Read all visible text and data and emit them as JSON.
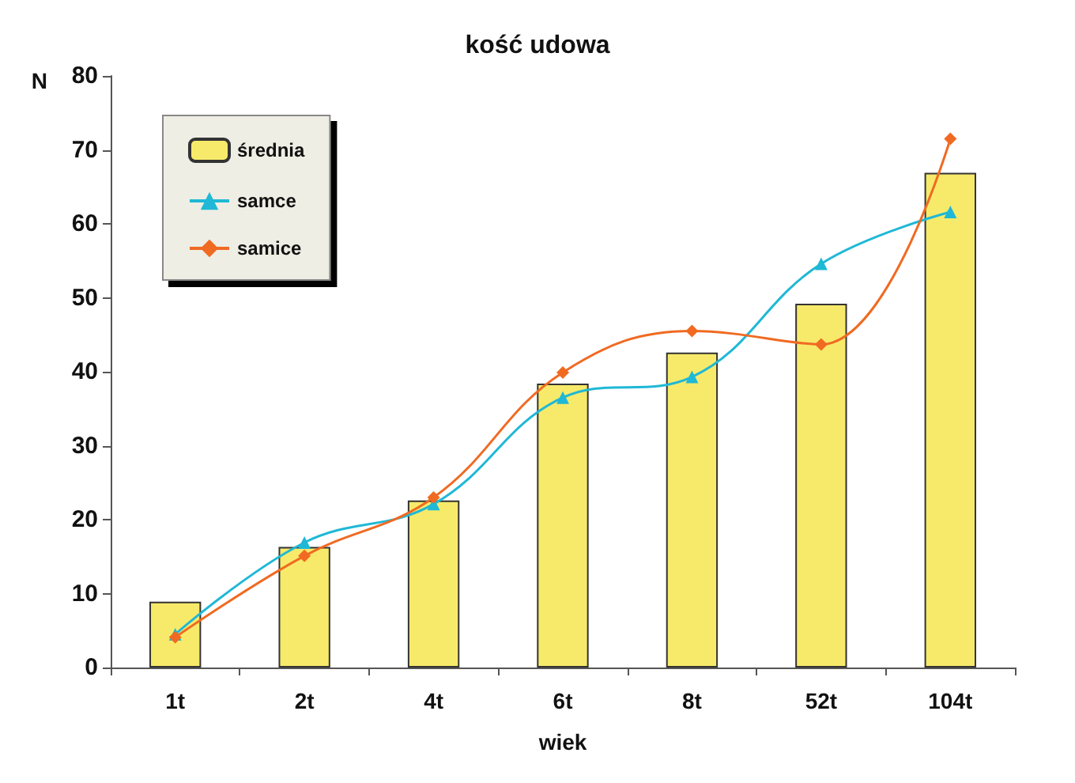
{
  "chart_data": {
    "type": "bar",
    "title": "kość udowa",
    "xlabel": "wiek",
    "ylabel": "N",
    "categories": [
      "1t",
      "2t",
      "4t",
      "6t",
      "8t",
      "52t",
      "104t"
    ],
    "series": [
      {
        "name": "średnia",
        "color": "#f7ea6a",
        "values": [
          8.9,
          16.3,
          22.6,
          38.4,
          42.6,
          49.2,
          66.9
        ]
      },
      {
        "name": "samce",
        "type": "line",
        "color": "#1fb8d6",
        "marker": "triangle",
        "values": [
          4.5,
          16.9,
          22.1,
          36.5,
          39.3,
          54.6,
          61.6
        ]
      },
      {
        "name": "samice",
        "type": "line",
        "color": "#f06a22",
        "marker": "diamond",
        "values": [
          4.1,
          15.1,
          23,
          39.9,
          45.5,
          43.7,
          71.5
        ]
      }
    ],
    "ylim": [
      0,
      80
    ],
    "yticks": [
      0,
      10,
      20,
      30,
      40,
      50,
      60,
      70,
      80
    ],
    "grid": false,
    "legend": "top left"
  }
}
